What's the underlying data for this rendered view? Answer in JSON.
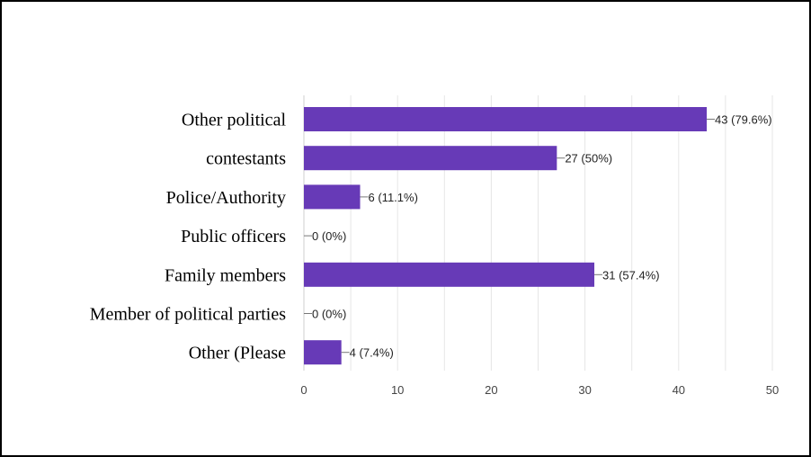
{
  "chart_data": {
    "type": "bar",
    "orientation": "horizontal",
    "categories": [
      "Other political",
      "contestants",
      "Police/Authority",
      "Public officers",
      "Family members",
      "Member of political parties",
      "Other (Please"
    ],
    "values": [
      43,
      27,
      6,
      0,
      31,
      0,
      4
    ],
    "data_labels": [
      "43 (79.6%)",
      "27 (50%)",
      "6 (11.1%)",
      "0 (0%)",
      "31 (57.4%)",
      "0 (0%)",
      "4 (7.4%)"
    ],
    "xlim": [
      0,
      50
    ],
    "xticks": [
      0,
      10,
      20,
      30,
      40,
      50
    ],
    "xtick_labels": [
      "0",
      "10",
      "20",
      "30",
      "40",
      "50"
    ],
    "grid": true,
    "bar_color": "#673ab7"
  }
}
